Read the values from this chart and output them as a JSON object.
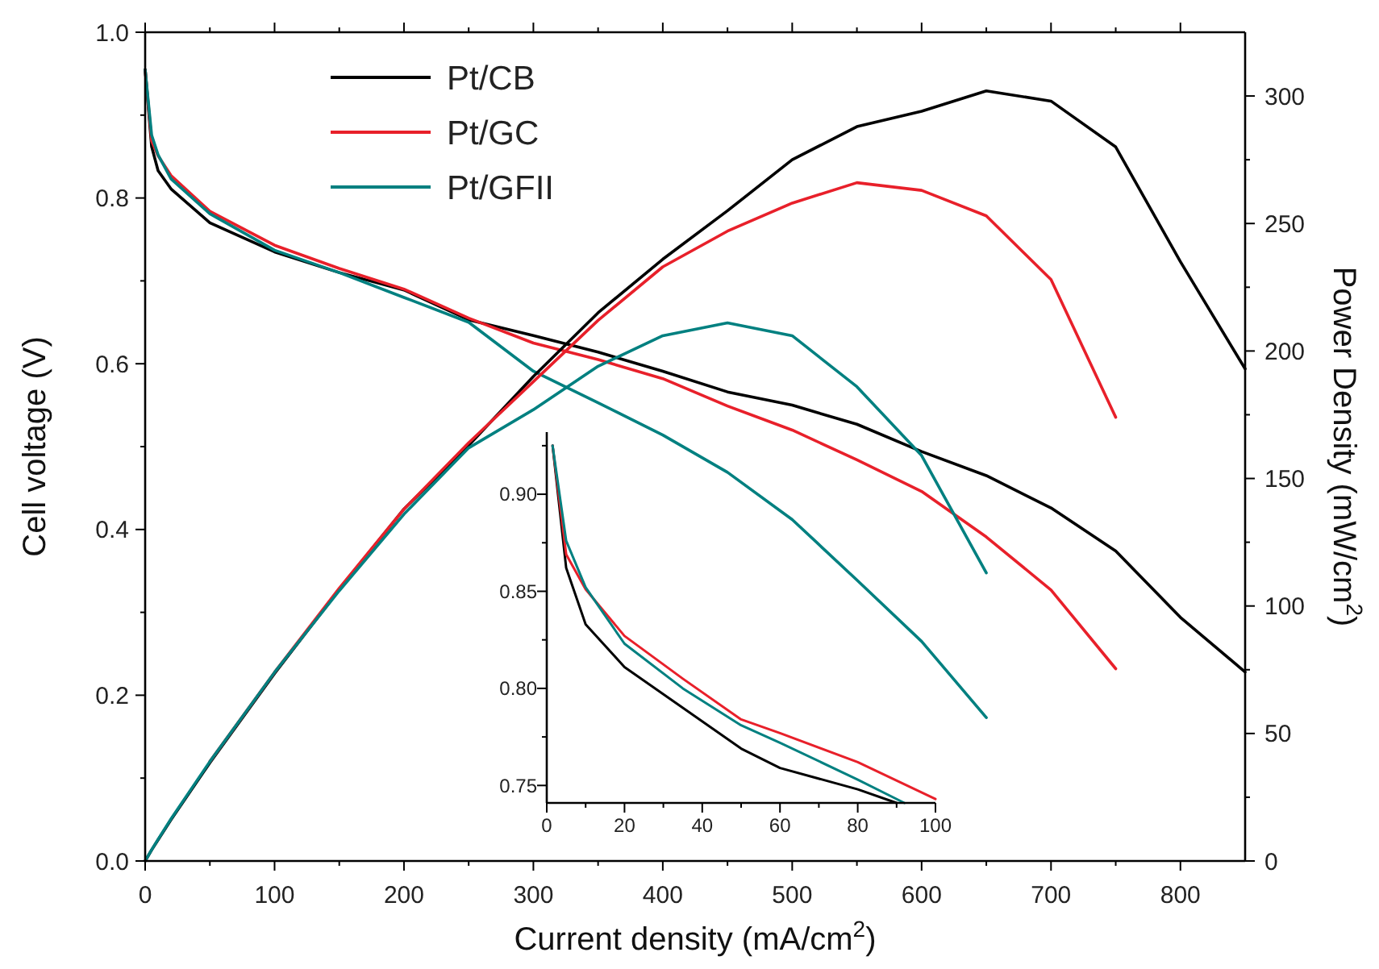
{
  "chart_data": [
    {
      "type": "line",
      "xlabel": "Current density (mA/cm$^{2}$)",
      "ylabel": "Cell voltage (V)",
      "y2label": "Power Density (mW/cm$^{2}$)",
      "xlim": [
        0,
        850
      ],
      "xticks": [
        0,
        {
          "value": 50,
          "label": null
        },
        100,
        {
          "value": 150,
          "label": null
        },
        200,
        {
          "value": 250,
          "label": null
        },
        300,
        {
          "value": 350,
          "label": null
        },
        400,
        {
          "value": 450,
          "label": null
        },
        500,
        {
          "value": 550,
          "label": null
        },
        600,
        {
          "value": 650,
          "label": null
        },
        700,
        {
          "value": 750,
          "label": null
        },
        800
      ],
      "ylim": [
        0,
        1
      ],
      "yticks": [
        {
          "value": 0,
          "label": "0.0"
        },
        {
          "value": 0.1,
          "label": null
        },
        0.2,
        {
          "value": 0.3,
          "label": null
        },
        0.4,
        {
          "value": 0.5,
          "label": null
        },
        0.6,
        {
          "value": 0.7,
          "label": null
        },
        0.8,
        {
          "value": 0.9,
          "label": null
        },
        {
          "value": 1,
          "label": "1.0"
        }
      ],
      "y2lim": [
        0,
        325
      ],
      "y2ticks": [
        0,
        {
          "value": 25,
          "label": null
        },
        50,
        {
          "value": 75,
          "label": null
        },
        100,
        {
          "value": 125,
          "label": null
        },
        150,
        {
          "value": 175,
          "label": null
        },
        200,
        {
          "value": 225,
          "label": null
        },
        250,
        {
          "value": 275,
          "label": null
        },
        300
      ],
      "legend": "top left",
      "series": [
        {
          "name": "Pt/CB",
          "color": "#000000",
          "x": [
            0,
            5,
            10,
            20,
            50,
            100,
            150,
            200,
            250,
            300,
            350,
            400,
            450,
            500,
            550,
            600,
            650,
            700,
            750,
            800,
            850
          ],
          "values": [
            0.955,
            0.862,
            0.833,
            0.811,
            0.77,
            0.735,
            0.71,
            0.689,
            0.653,
            0.634,
            0.614,
            0.591,
            0.566,
            0.55,
            0.527,
            0.494,
            0.465,
            0.426,
            0.374,
            0.294,
            0.228
          ]
        },
        {
          "name": "Pt/GC",
          "color": "#e8202a",
          "x": [
            0,
            5,
            10,
            20,
            50,
            100,
            150,
            200,
            250,
            300,
            350,
            400,
            450,
            500,
            550,
            600,
            650,
            700,
            750
          ],
          "values": [
            0.955,
            0.869,
            0.851,
            0.827,
            0.784,
            0.743,
            0.715,
            0.69,
            0.655,
            0.625,
            0.605,
            0.582,
            0.549,
            0.52,
            0.484,
            0.446,
            0.391,
            0.327,
            0.232
          ]
        },
        {
          "name": "Pt/GFII",
          "color": "#008080",
          "x": [
            0,
            5,
            10,
            20,
            50,
            100,
            150,
            200,
            250,
            300,
            350,
            400,
            450,
            500,
            550,
            600,
            650
          ],
          "values": [
            0.955,
            0.876,
            0.852,
            0.823,
            0.781,
            0.737,
            0.71,
            0.68,
            0.65,
            0.591,
            0.553,
            0.514,
            0.469,
            0.412,
            0.339,
            0.265,
            0.173
          ]
        },
        {
          "color": "#000000",
          "axis": "y2",
          "x": [
            0,
            5,
            10,
            20,
            50,
            100,
            150,
            200,
            250,
            300,
            350,
            400,
            450,
            500,
            550,
            600,
            650,
            700,
            750,
            800,
            850
          ],
          "values": [
            0,
            4.3,
            8.3,
            16.2,
            38.5,
            73.5,
            106.5,
            138,
            163,
            190,
            215,
            236,
            255,
            275,
            288,
            294,
            302,
            298,
            280,
            235,
            193
          ]
        },
        {
          "color": "#e8202a",
          "axis": "y2",
          "x": [
            50,
            100,
            150,
            200,
            250,
            300,
            350,
            400,
            450,
            500,
            550,
            600,
            650,
            700,
            750
          ],
          "values": [
            39,
            74,
            107,
            138,
            164,
            188,
            212,
            233,
            247,
            258,
            266,
            263,
            253,
            228,
            174
          ]
        },
        {
          "color": "#008080",
          "axis": "y2",
          "x": [
            0,
            5,
            10,
            20,
            50,
            100,
            150,
            200,
            250,
            300,
            350,
            400,
            450,
            500,
            550,
            600,
            650
          ],
          "values": [
            0,
            4.4,
            8.5,
            16.5,
            39,
            74,
            106,
            136,
            162,
            177,
            194,
            206,
            211,
            206,
            186,
            159,
            113
          ]
        }
      ]
    },
    {
      "type": "line",
      "xlim": [
        0,
        100
      ],
      "xticks": [
        0,
        {
          "value": 10,
          "label": null
        },
        20,
        {
          "value": 30,
          "label": null
        },
        40,
        {
          "value": 50,
          "label": null
        },
        60,
        {
          "value": 70,
          "label": null
        },
        80,
        {
          "value": 90,
          "label": null
        },
        100
      ],
      "ylim": [
        0.741,
        0.932
      ],
      "yticks": [
        {
          "value": 0.75,
          "label": "0.75"
        },
        {
          "value": 0.775,
          "label": null
        },
        {
          "value": 0.8,
          "label": "0.80"
        },
        {
          "value": 0.825,
          "label": null
        },
        {
          "value": 0.85,
          "label": "0.85"
        },
        {
          "value": 0.875,
          "label": null
        },
        {
          "value": 0.9,
          "label": "0.90"
        },
        {
          "value": 0.925,
          "label": null
        }
      ],
      "series": [
        {
          "color": "#000000",
          "x": [
            1.5,
            5,
            10,
            20,
            35,
            50,
            60,
            80,
            90
          ],
          "values": [
            0.925,
            0.862,
            0.833,
            0.811,
            0.79,
            0.769,
            0.759,
            0.748,
            0.741
          ]
        },
        {
          "color": "#e8202a",
          "x": [
            1.5,
            5,
            10,
            20,
            35,
            50,
            60,
            80,
            100
          ],
          "values": [
            0.925,
            0.869,
            0.851,
            0.827,
            0.805,
            0.784,
            0.777,
            0.762,
            0.743
          ]
        },
        {
          "color": "#008080",
          "x": [
            1.5,
            5,
            10,
            20,
            35,
            50,
            60,
            80,
            92
          ],
          "values": [
            0.925,
            0.876,
            0.852,
            0.823,
            0.8,
            0.781,
            0.772,
            0.753,
            0.741
          ]
        }
      ]
    }
  ]
}
